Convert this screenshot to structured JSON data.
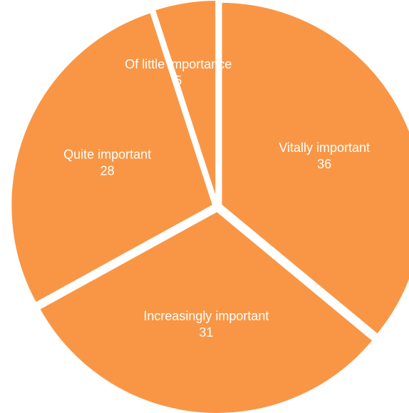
{
  "chart_data": {
    "type": "pie",
    "categories": [
      "Vitally important",
      "Increasingly important",
      "Quite important",
      "Of little importance"
    ],
    "values": [
      36,
      31,
      28,
      5
    ],
    "color": "#f99645"
  }
}
